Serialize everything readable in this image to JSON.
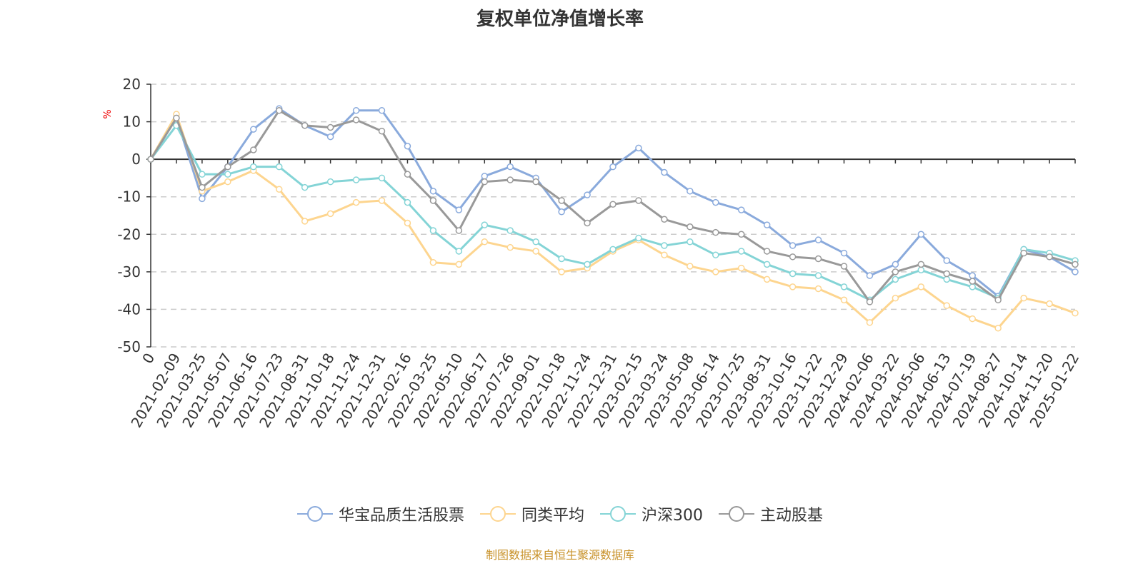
{
  "footer": "制图数据来自恒生聚源数据库",
  "chart_data": {
    "type": "line",
    "title": "复权单位净值增长率",
    "ylabel": "%",
    "ylim": [
      -50,
      20
    ],
    "yticks": [
      20,
      10,
      0,
      -10,
      -20,
      -30,
      -40,
      -50
    ],
    "grid": true,
    "legend_position": "bottom",
    "categories": [
      "0",
      "2021-02-09",
      "2021-03-25",
      "2021-05-07",
      "2021-06-16",
      "2021-07-23",
      "2021-08-31",
      "2021-10-18",
      "2021-11-24",
      "2021-12-31",
      "2022-02-16",
      "2022-03-25",
      "2022-05-10",
      "2022-06-17",
      "2022-07-26",
      "2022-09-01",
      "2022-10-18",
      "2022-11-24",
      "2022-12-31",
      "2023-02-15",
      "2023-03-24",
      "2023-05-08",
      "2023-06-14",
      "2023-07-25",
      "2023-08-31",
      "2023-10-16",
      "2023-11-22",
      "2023-12-29",
      "2024-02-06",
      "2024-03-22",
      "2024-05-06",
      "2024-06-13",
      "2024-07-19",
      "2024-08-27",
      "2024-10-14",
      "2024-11-20",
      "2025-01-22"
    ],
    "series": [
      {
        "name": "华宝品质生活股票",
        "color": "#8aaadc",
        "values": [
          0,
          11,
          -10.5,
          -2,
          8,
          13.5,
          9,
          6,
          13,
          13,
          3.5,
          -8.5,
          -13.5,
          -4.5,
          -2,
          -5,
          -14,
          -9.5,
          -2,
          3,
          -3.5,
          -8.5,
          -11.5,
          -13.5,
          -17.5,
          -23,
          -21.5,
          -25,
          -31,
          -28,
          -20,
          -27,
          -31,
          -36.5,
          -24,
          -26,
          -30
        ]
      },
      {
        "name": "同类平均",
        "color": "#fdd58f",
        "values": [
          0,
          12,
          -8.5,
          -6,
          -3,
          -8,
          -16.5,
          -14.5,
          -11.5,
          -11,
          -17,
          -27.5,
          -28,
          -22,
          -23.5,
          -24.5,
          -30,
          -29,
          -24.5,
          -21.5,
          -25.5,
          -28.5,
          -30,
          -29,
          -32,
          -34,
          -34.5,
          -37.5,
          -43.5,
          -37,
          -34,
          -39,
          -42.5,
          -45,
          -37,
          -38.5,
          -41
        ]
      },
      {
        "name": "沪深300",
        "color": "#84d4d6",
        "values": [
          0,
          9,
          -4,
          -4,
          -2,
          -2,
          -7.5,
          -6,
          -5.5,
          -5,
          -11.5,
          -19,
          -24.5,
          -17.5,
          -19,
          -22,
          -26.5,
          -28,
          -24,
          -21,
          -23,
          -22,
          -25.5,
          -24.5,
          -28,
          -30.5,
          -31,
          -34,
          -37.5,
          -32,
          -29.5,
          -32,
          -34,
          -37,
          -24,
          -25,
          -27
        ]
      },
      {
        "name": "主动股基",
        "color": "#999999",
        "values": [
          0,
          11,
          -7.5,
          -2,
          2.5,
          13,
          9,
          8.5,
          10.5,
          7.5,
          -4,
          -11,
          -19,
          -6,
          -5.5,
          -6,
          -11,
          -17,
          -12,
          -11,
          -16,
          -18,
          -19.5,
          -20,
          -24.5,
          -26,
          -26.5,
          -28.5,
          -38,
          -30,
          -28,
          -30.5,
          -32.5,
          -37.5,
          -25,
          -26,
          -28
        ]
      }
    ]
  }
}
